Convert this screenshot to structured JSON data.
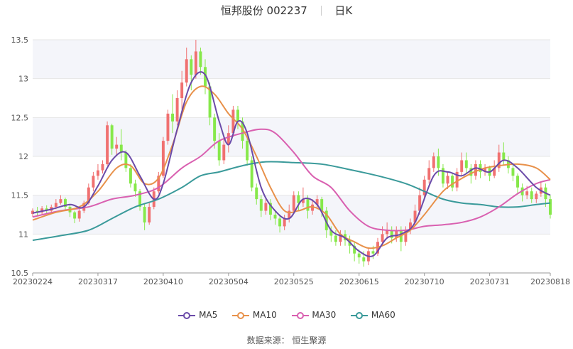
{
  "header": {
    "stock_name": "恒邦股份 002237",
    "period": "日K"
  },
  "source_text": "数据来源： 恒生聚源",
  "colors": {
    "up": "#f07070",
    "down": "#86e84a",
    "ma5": "#6a4aa8",
    "ma10": "#e8914a",
    "ma30": "#d960b0",
    "ma60": "#3a9a9a",
    "grid": "#e6e6e6",
    "band": "#f4f5fa"
  },
  "chart_data": {
    "type": "candlestick",
    "ylim": [
      10.5,
      13.5
    ],
    "y_ticks": [
      "10.5",
      "11",
      "11.5",
      "12",
      "12.5",
      "13",
      "13.5"
    ],
    "x_tick_labels": [
      "20230224",
      "20230317",
      "20230410",
      "20230504",
      "20230525",
      "20230615",
      "20230710",
      "20230731",
      "20230818"
    ],
    "x_tick_index": [
      0,
      14,
      28,
      42,
      56,
      70,
      84,
      98,
      111
    ],
    "n_days": 112,
    "candles": [
      [
        11.26,
        11.3,
        11.33,
        11.22
      ],
      [
        11.3,
        11.28,
        11.35,
        11.24
      ],
      [
        11.28,
        11.33,
        11.36,
        11.25
      ],
      [
        11.33,
        11.3,
        11.37,
        11.27
      ],
      [
        11.3,
        11.35,
        11.38,
        11.28
      ],
      [
        11.35,
        11.4,
        11.45,
        11.32
      ],
      [
        11.4,
        11.45,
        11.5,
        11.38
      ],
      [
        11.45,
        11.35,
        11.47,
        11.3
      ],
      [
        11.35,
        11.28,
        11.38,
        11.22
      ],
      [
        11.28,
        11.2,
        11.3,
        11.14
      ],
      [
        11.2,
        11.3,
        11.33,
        11.16
      ],
      [
        11.3,
        11.4,
        11.43,
        11.27
      ],
      [
        11.4,
        11.6,
        11.65,
        11.38
      ],
      [
        11.6,
        11.75,
        11.8,
        11.55
      ],
      [
        11.75,
        11.82,
        11.9,
        11.7
      ],
      [
        11.82,
        11.9,
        11.95,
        11.78
      ],
      [
        11.9,
        12.4,
        12.45,
        11.88
      ],
      [
        12.4,
        12.1,
        12.42,
        12.02
      ],
      [
        12.1,
        12.15,
        12.25,
        12.0
      ],
      [
        12.15,
        12.05,
        12.35,
        11.95
      ],
      [
        12.05,
        11.85,
        12.08,
        11.8
      ],
      [
        11.85,
        11.65,
        11.9,
        11.6
      ],
      [
        11.65,
        11.55,
        11.7,
        11.48
      ],
      [
        11.55,
        11.35,
        11.58,
        11.3
      ],
      [
        11.35,
        11.15,
        11.4,
        11.05
      ],
      [
        11.15,
        11.35,
        11.4,
        11.12
      ],
      [
        11.35,
        11.55,
        11.6,
        11.32
      ],
      [
        11.55,
        11.75,
        11.8,
        11.52
      ],
      [
        11.75,
        12.2,
        12.25,
        11.72
      ],
      [
        12.2,
        12.55,
        12.6,
        12.15
      ],
      [
        12.55,
        12.45,
        12.8,
        12.3
      ],
      [
        12.45,
        12.75,
        12.85,
        12.4
      ],
      [
        12.75,
        12.95,
        13.1,
        12.6
      ],
      [
        12.95,
        13.25,
        13.4,
        12.9
      ],
      [
        13.25,
        13.05,
        13.3,
        12.85
      ],
      [
        13.05,
        13.35,
        13.5,
        13.0
      ],
      [
        13.35,
        13.15,
        13.4,
        13.05
      ],
      [
        13.15,
        12.9,
        13.25,
        12.8
      ],
      [
        12.9,
        12.5,
        12.95,
        12.4
      ],
      [
        12.5,
        12.2,
        12.55,
        12.1
      ],
      [
        12.2,
        11.95,
        12.3,
        11.88
      ],
      [
        11.95,
        12.15,
        12.25,
        11.9
      ],
      [
        12.15,
        12.3,
        12.4,
        12.05
      ],
      [
        12.3,
        12.6,
        12.65,
        12.25
      ],
      [
        12.6,
        12.45,
        12.65,
        12.35
      ],
      [
        12.45,
        12.2,
        12.5,
        12.1
      ],
      [
        12.2,
        11.95,
        12.25,
        11.88
      ],
      [
        11.95,
        11.6,
        12.0,
        11.55
      ],
      [
        11.6,
        11.45,
        11.65,
        11.38
      ],
      [
        11.45,
        11.3,
        11.5,
        11.22
      ],
      [
        11.3,
        11.4,
        11.45,
        11.25
      ],
      [
        11.4,
        11.25,
        11.45,
        11.18
      ],
      [
        11.25,
        11.2,
        11.3,
        11.12
      ],
      [
        11.2,
        11.1,
        11.25,
        11.02
      ],
      [
        11.1,
        11.2,
        11.25,
        11.05
      ],
      [
        11.2,
        11.3,
        11.38,
        11.15
      ],
      [
        11.3,
        11.5,
        11.55,
        11.28
      ],
      [
        11.5,
        11.4,
        11.55,
        11.3
      ],
      [
        11.4,
        11.45,
        11.6,
        11.35
      ],
      [
        11.45,
        11.3,
        11.5,
        11.2
      ],
      [
        11.3,
        11.38,
        11.45,
        11.25
      ],
      [
        11.38,
        11.45,
        11.5,
        11.32
      ],
      [
        11.45,
        11.3,
        11.48,
        11.22
      ],
      [
        11.3,
        11.05,
        11.35,
        10.95
      ],
      [
        11.05,
        10.98,
        11.1,
        10.9
      ],
      [
        10.98,
        10.9,
        11.05,
        10.85
      ],
      [
        10.9,
        11.0,
        11.05,
        10.85
      ],
      [
        11.0,
        10.92,
        11.05,
        10.85
      ],
      [
        10.92,
        10.85,
        10.98,
        10.75
      ],
      [
        10.85,
        10.75,
        10.9,
        10.65
      ],
      [
        10.75,
        10.7,
        10.8,
        10.62
      ],
      [
        10.7,
        10.65,
        10.78,
        10.58
      ],
      [
        10.65,
        10.78,
        10.82,
        10.6
      ],
      [
        10.78,
        10.75,
        10.85,
        10.68
      ],
      [
        10.75,
        10.9,
        10.95,
        10.72
      ],
      [
        10.9,
        11.0,
        11.1,
        10.85
      ],
      [
        11.0,
        11.05,
        11.15,
        10.95
      ],
      [
        11.05,
        10.95,
        11.1,
        10.88
      ],
      [
        10.95,
        11.05,
        11.1,
        10.9
      ],
      [
        11.05,
        10.9,
        11.1,
        10.78
      ],
      [
        10.9,
        11.05,
        11.1,
        10.85
      ],
      [
        11.05,
        11.15,
        11.2,
        11.0
      ],
      [
        11.15,
        11.3,
        11.38,
        11.1
      ],
      [
        11.3,
        11.5,
        11.6,
        11.25
      ],
      [
        11.5,
        11.7,
        11.75,
        11.45
      ],
      [
        11.7,
        11.85,
        11.95,
        11.65
      ],
      [
        11.85,
        12.0,
        12.05,
        11.8
      ],
      [
        12.0,
        11.85,
        12.1,
        11.75
      ],
      [
        11.85,
        11.65,
        11.9,
        11.6
      ],
      [
        11.65,
        11.75,
        11.8,
        11.58
      ],
      [
        11.75,
        11.6,
        11.78,
        11.55
      ],
      [
        11.6,
        11.8,
        11.85,
        11.55
      ],
      [
        11.8,
        11.95,
        12.05,
        11.75
      ],
      [
        11.95,
        11.85,
        12.05,
        11.78
      ],
      [
        11.85,
        11.75,
        11.9,
        11.65
      ],
      [
        11.75,
        11.9,
        11.95,
        11.7
      ],
      [
        11.9,
        11.8,
        11.95,
        11.72
      ],
      [
        11.8,
        11.85,
        11.9,
        11.75
      ],
      [
        11.85,
        11.75,
        11.88,
        11.68
      ],
      [
        11.75,
        11.85,
        11.95,
        11.72
      ],
      [
        11.85,
        12.05,
        12.15,
        11.8
      ],
      [
        12.05,
        11.95,
        12.18,
        11.88
      ],
      [
        11.95,
        11.85,
        12.0,
        11.78
      ],
      [
        11.85,
        11.75,
        11.9,
        11.68
      ],
      [
        11.75,
        11.6,
        11.78,
        11.52
      ],
      [
        11.6,
        11.5,
        11.65,
        11.42
      ],
      [
        11.5,
        11.55,
        11.62,
        11.45
      ],
      [
        11.55,
        11.45,
        11.6,
        11.4
      ],
      [
        11.45,
        11.52,
        11.55,
        11.4
      ],
      [
        11.52,
        11.6,
        11.68,
        11.48
      ],
      [
        11.6,
        11.45,
        11.65,
        11.35
      ],
      [
        11.45,
        11.25,
        11.5,
        11.2
      ]
    ],
    "ma_anchors": {
      "ma5": [
        [
          0,
          11.27
        ],
        [
          4,
          11.32
        ],
        [
          8,
          11.38
        ],
        [
          11,
          11.35
        ],
        [
          14,
          11.62
        ],
        [
          17,
          11.95
        ],
        [
          20,
          12.05
        ],
        [
          23,
          11.75
        ],
        [
          26,
          11.45
        ],
        [
          28,
          11.65
        ],
        [
          31,
          12.35
        ],
        [
          34,
          12.95
        ],
        [
          37,
          13.05
        ],
        [
          40,
          12.45
        ],
        [
          42,
          12.15
        ],
        [
          44,
          12.45
        ],
        [
          46,
          12.3
        ],
        [
          49,
          11.6
        ],
        [
          52,
          11.3
        ],
        [
          55,
          11.2
        ],
        [
          58,
          11.45
        ],
        [
          61,
          11.38
        ],
        [
          64,
          11.05
        ],
        [
          67,
          10.95
        ],
        [
          70,
          10.78
        ],
        [
          73,
          10.72
        ],
        [
          76,
          10.95
        ],
        [
          79,
          11.0
        ],
        [
          82,
          11.15
        ],
        [
          86,
          11.75
        ],
        [
          89,
          11.8
        ],
        [
          92,
          11.75
        ],
        [
          95,
          11.85
        ],
        [
          98,
          11.8
        ],
        [
          101,
          11.95
        ],
        [
          104,
          11.85
        ],
        [
          108,
          11.6
        ],
        [
          111,
          11.5
        ]
      ],
      "ma10": [
        [
          0,
          11.18
        ],
        [
          5,
          11.28
        ],
        [
          10,
          11.35
        ],
        [
          14,
          11.55
        ],
        [
          18,
          11.85
        ],
        [
          21,
          11.88
        ],
        [
          24,
          11.65
        ],
        [
          27,
          11.72
        ],
        [
          30,
          12.15
        ],
        [
          33,
          12.7
        ],
        [
          36,
          12.9
        ],
        [
          39,
          12.8
        ],
        [
          42,
          12.55
        ],
        [
          45,
          12.35
        ],
        [
          48,
          12.0
        ],
        [
          51,
          11.6
        ],
        [
          54,
          11.3
        ],
        [
          57,
          11.3
        ],
        [
          60,
          11.35
        ],
        [
          63,
          11.25
        ],
        [
          66,
          11.0
        ],
        [
          69,
          10.9
        ],
        [
          72,
          10.82
        ],
        [
          75,
          10.85
        ],
        [
          78,
          10.95
        ],
        [
          81,
          11.05
        ],
        [
          84,
          11.25
        ],
        [
          88,
          11.55
        ],
        [
          91,
          11.68
        ],
        [
          94,
          11.78
        ],
        [
          97,
          11.85
        ],
        [
          100,
          11.88
        ],
        [
          104,
          11.9
        ],
        [
          108,
          11.85
        ],
        [
          111,
          11.7
        ]
      ],
      "ma30": [
        [
          0,
          11.22
        ],
        [
          6,
          11.3
        ],
        [
          12,
          11.35
        ],
        [
          17,
          11.45
        ],
        [
          22,
          11.5
        ],
        [
          27,
          11.6
        ],
        [
          32,
          11.85
        ],
        [
          36,
          12.0
        ],
        [
          40,
          12.2
        ],
        [
          45,
          12.3
        ],
        [
          49,
          12.35
        ],
        [
          52,
          12.3
        ],
        [
          56,
          12.05
        ],
        [
          60,
          11.75
        ],
        [
          64,
          11.6
        ],
        [
          68,
          11.3
        ],
        [
          72,
          11.1
        ],
        [
          76,
          11.05
        ],
        [
          80,
          11.05
        ],
        [
          84,
          11.1
        ],
        [
          88,
          11.12
        ],
        [
          92,
          11.15
        ],
        [
          96,
          11.22
        ],
        [
          100,
          11.35
        ],
        [
          104,
          11.52
        ],
        [
          108,
          11.65
        ],
        [
          111,
          11.7
        ]
      ],
      "ma60": [
        [
          0,
          10.92
        ],
        [
          6,
          10.98
        ],
        [
          12,
          11.05
        ],
        [
          17,
          11.2
        ],
        [
          22,
          11.35
        ],
        [
          27,
          11.45
        ],
        [
          32,
          11.6
        ],
        [
          36,
          11.75
        ],
        [
          40,
          11.8
        ],
        [
          45,
          11.88
        ],
        [
          50,
          11.93
        ],
        [
          56,
          11.92
        ],
        [
          62,
          11.9
        ],
        [
          68,
          11.83
        ],
        [
          74,
          11.75
        ],
        [
          80,
          11.65
        ],
        [
          84,
          11.55
        ],
        [
          88,
          11.45
        ],
        [
          92,
          11.4
        ],
        [
          96,
          11.38
        ],
        [
          100,
          11.35
        ],
        [
          104,
          11.35
        ],
        [
          108,
          11.38
        ],
        [
          111,
          11.4
        ]
      ]
    },
    "legend": [
      {
        "key": "ma5",
        "label": "MA5"
      },
      {
        "key": "ma10",
        "label": "MA10"
      },
      {
        "key": "ma30",
        "label": "MA30"
      },
      {
        "key": "ma60",
        "label": "MA60"
      }
    ]
  }
}
